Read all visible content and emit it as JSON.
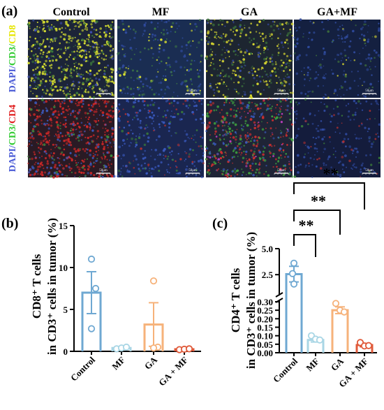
{
  "panel_a": {
    "label": "(a)",
    "columns": [
      "Control",
      "MF",
      "GA",
      "GA+MF"
    ],
    "rows": [
      {
        "parts": [
          {
            "text": "DAPI/",
            "color": "#4a5bd6"
          },
          {
            "text": "CD3/",
            "color": "#33cc33"
          },
          {
            "text": "CD8",
            "color": "#e6e600"
          }
        ]
      },
      {
        "parts": [
          {
            "text": "DAPI/",
            "color": "#4a5bd6"
          },
          {
            "text": "CD3/",
            "color": "#33cc33"
          },
          {
            "text": "CD4",
            "color": "#e02020"
          }
        ]
      }
    ],
    "scalebar_text": "50μm",
    "images": [
      [
        {
          "bg": "#1c2438",
          "dots": [
            {
              "color": "#d8e030",
              "count": 420
            },
            {
              "color": "#3b7a3a",
              "count": 140
            },
            {
              "color": "#3f4fb0",
              "count": 60
            }
          ]
        },
        {
          "bg": "#1a2d52",
          "dots": [
            {
              "color": "#d8e030",
              "count": 38
            },
            {
              "color": "#3f7a44",
              "count": 80
            },
            {
              "color": "#2f4a9c",
              "count": 120
            }
          ]
        },
        {
          "bg": "#1d2530",
          "dots": [
            {
              "color": "#d8d830",
              "count": 190
            },
            {
              "color": "#3a6e3a",
              "count": 120
            },
            {
              "color": "#35489a",
              "count": 70
            }
          ]
        },
        {
          "bg": "#142040",
          "dots": [
            {
              "color": "#d8d830",
              "count": 14
            },
            {
              "color": "#2f4a9c",
              "count": 150
            },
            {
              "color": "#3b6a3b",
              "count": 30
            }
          ]
        }
      ],
      [
        {
          "bg": "#2a1a24",
          "dots": [
            {
              "color": "#d02828",
              "count": 420
            },
            {
              "color": "#3a58b8",
              "count": 150
            },
            {
              "color": "#3e8a3e",
              "count": 60
            }
          ]
        },
        {
          "bg": "#1a2650",
          "dots": [
            {
              "color": "#3a5ac0",
              "count": 200
            },
            {
              "color": "#b03030",
              "count": 50
            },
            {
              "color": "#3a7a3a",
              "count": 40
            }
          ]
        },
        {
          "bg": "#1f2436",
          "dots": [
            {
              "color": "#d03030",
              "count": 200
            },
            {
              "color": "#3ea03e",
              "count": 170
            },
            {
              "color": "#3a58b8",
              "count": 90
            },
            {
              "color": "#c040c0",
              "count": 25
            }
          ]
        },
        {
          "bg": "#141c3c",
          "dots": [
            {
              "color": "#2f4aa0",
              "count": 160
            },
            {
              "color": "#b03030",
              "count": 25
            },
            {
              "color": "#3a7a3a",
              "count": 25
            }
          ]
        }
      ]
    ]
  },
  "chart_data": [
    {
      "panel": "(b)",
      "type": "bar",
      "categories": [
        "Control",
        "MF",
        "GA",
        "GA + MF"
      ],
      "colors": [
        "#6fa8d2",
        "#a9d6e5",
        "#f6b27a",
        "#e05a3a"
      ],
      "means": [
        7.0,
        0.4,
        3.2,
        0.25
      ],
      "sem": [
        2.5,
        0.1,
        2.6,
        0.06
      ],
      "points": [
        [
          11.0,
          7.5,
          2.7
        ],
        [
          0.3,
          0.4,
          0.5
        ],
        [
          8.4,
          0.5,
          0.4
        ],
        [
          0.2,
          0.25,
          0.3
        ]
      ],
      "ylabel_lines": [
        "CD8⁺ T cells",
        "in CD3⁺ cells in tumor (%)"
      ],
      "yticks": [
        "0",
        "5",
        "10",
        "15"
      ],
      "ylim": [
        0,
        15
      ]
    },
    {
      "panel": "(c)",
      "type": "bar",
      "categories": [
        "Control",
        "MF",
        "GA",
        "GA + MF"
      ],
      "colors": [
        "#6fa8d2",
        "#a9d6e5",
        "#f6b27a",
        "#e05a3a"
      ],
      "means": [
        2.55,
        0.075,
        0.25,
        0.045
      ],
      "sem": [
        0.75,
        0.012,
        0.02,
        0.01
      ],
      "points": [
        [
          3.6,
          2.6,
          1.6
        ],
        [
          0.1,
          0.08,
          0.075
        ],
        [
          0.29,
          0.25,
          0.24
        ],
        [
          0.06,
          0.04,
          0.042
        ]
      ],
      "ylabel_lines": [
        "CD4⁺ T cells",
        "in CD3⁺ cells in tumor (%)"
      ],
      "yticks_lower": [
        "0.00",
        "0.05",
        "0.10",
        "0.15",
        "0.20",
        "0.25",
        "0.30"
      ],
      "yticks_upper": [
        "2.5",
        "5.0"
      ],
      "axis_break": [
        0.3,
        0.5
      ],
      "ylim_lower": [
        0,
        0.3
      ],
      "ylim_upper": [
        0.5,
        5.0
      ],
      "significance": [
        {
          "from": "Control",
          "to": "MF",
          "label": "**"
        },
        {
          "from": "Control",
          "to": "GA",
          "label": "**"
        },
        {
          "from": "Control",
          "to": "GA + MF",
          "label": "**"
        }
      ]
    }
  ]
}
